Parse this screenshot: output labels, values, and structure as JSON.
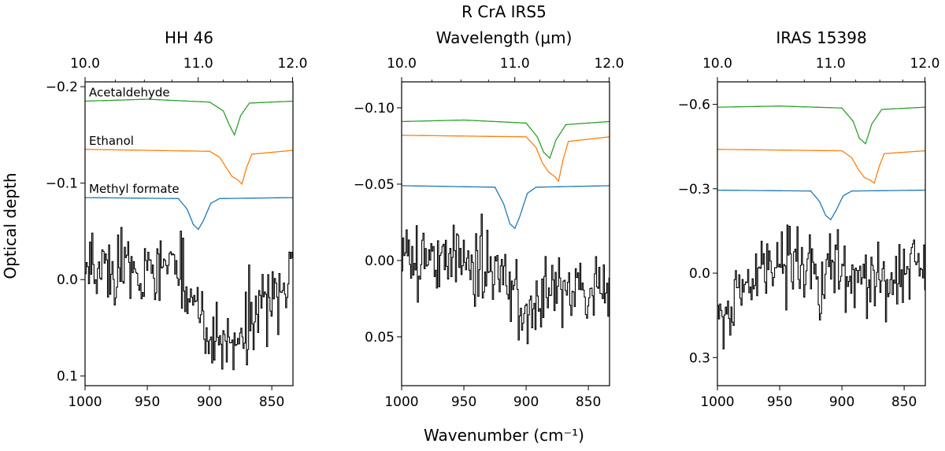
{
  "figure": {
    "suptitle": "R CrA IRS5",
    "top_axis_label": "Wavelength (μm)",
    "bottom_axis_label": "Wavenumber (cm⁻¹)",
    "ylabel": "Optical depth"
  },
  "chart_data": [
    {
      "type": "line",
      "title": "HH 46",
      "xlabel": "Wavenumber (cm⁻¹)",
      "ylabel": "Optical depth",
      "xlim": [
        1000,
        833
      ],
      "ylim": [
        0.11,
        -0.205
      ],
      "y_inverted": true,
      "xticks": [
        1000,
        950,
        900,
        850
      ],
      "xtick_labels": [
        "1000",
        "950",
        "900",
        "850"
      ],
      "yticks": [
        -0.2,
        -0.1,
        0.0,
        0.1
      ],
      "ytick_labels": [
        "−0.2",
        "−0.1",
        "0.0",
        "0.1"
      ],
      "top_ticks_um": [
        10.0,
        11.0,
        12.0
      ],
      "top_tick_labels": [
        "10.0",
        "11.0",
        "12.0"
      ],
      "top_minor_um": [
        10.25,
        10.5,
        10.75,
        11.25,
        11.5,
        11.75
      ],
      "observed_scale": 0.018,
      "observed_trend": [
        [
          1000,
          -0.01
        ],
        [
          950,
          -0.008
        ],
        [
          930,
          -0.015
        ],
        [
          900,
          0.06
        ],
        [
          880,
          0.065
        ],
        [
          860,
          0.035
        ],
        [
          833,
          -0.01
        ]
      ],
      "series": [
        {
          "name": "Acetaldehyde",
          "color": "#2ca02c",
          "baseline": -0.185,
          "profile": [
            [
              1000,
              0
            ],
            [
              950,
              -0.002
            ],
            [
              900,
              0.001
            ],
            [
              889,
              0.01
            ],
            [
              884,
              0.025
            ],
            [
              880,
              0.035
            ],
            [
              875,
              0.015
            ],
            [
              868,
              0.002
            ],
            [
              833,
              0
            ]
          ]
        },
        {
          "name": "Ethanol",
          "color": "#ff7f0e",
          "baseline": -0.135,
          "profile": [
            [
              1000,
              0
            ],
            [
              900,
              0.002
            ],
            [
              892,
              0.008
            ],
            [
              887,
              0.018
            ],
            [
              882,
              0.028
            ],
            [
              877,
              0.032
            ],
            [
              874,
              0.036
            ],
            [
              870,
              0.018
            ],
            [
              866,
              0.005
            ],
            [
              833,
              0.001
            ]
          ]
        },
        {
          "name": "Methyl formate",
          "color": "#1f77b4",
          "baseline": -0.085,
          "profile": [
            [
              1000,
              0
            ],
            [
              925,
              0.001
            ],
            [
              918,
              0.012
            ],
            [
              913,
              0.028
            ],
            [
              909,
              0.033
            ],
            [
              905,
              0.024
            ],
            [
              899,
              0.006
            ],
            [
              892,
              0.001
            ],
            [
              833,
              0
            ]
          ]
        }
      ]
    },
    {
      "type": "line",
      "title": "",
      "xlabel": "Wavenumber (cm⁻¹)",
      "ylabel": "",
      "xlim": [
        1000,
        833
      ],
      "ylim": [
        0.082,
        -0.117
      ],
      "y_inverted": true,
      "xticks": [
        1000,
        950,
        900,
        850
      ],
      "xtick_labels": [
        "1000",
        "950",
        "900",
        "850"
      ],
      "yticks": [
        -0.1,
        -0.05,
        0.0,
        0.05
      ],
      "ytick_labels": [
        "−0.10",
        "−0.05",
        "0.00",
        "0.05"
      ],
      "top_ticks_um": [
        10.0,
        11.0,
        12.0
      ],
      "top_tick_labels": [
        "10.0",
        "11.0",
        "12.0"
      ],
      "top_minor_um": [
        10.25,
        10.5,
        10.75,
        11.25,
        11.5,
        11.75
      ],
      "observed_scale": 0.012,
      "observed_trend": [
        [
          1000,
          -0.005
        ],
        [
          950,
          0.002
        ],
        [
          920,
          0.01
        ],
        [
          905,
          0.035
        ],
        [
          890,
          0.025
        ],
        [
          870,
          0.018
        ],
        [
          850,
          0.02
        ],
        [
          833,
          0.015
        ]
      ],
      "series": [
        {
          "name": "Acetaldehyde",
          "color": "#2ca02c",
          "baseline": -0.091,
          "profile": [
            [
              1000,
              0
            ],
            [
              950,
              -0.001
            ],
            [
              900,
              0.001
            ],
            [
              891,
              0.01
            ],
            [
              886,
              0.02
            ],
            [
              881,
              0.024
            ],
            [
              876,
              0.012
            ],
            [
              868,
              0.002
            ],
            [
              833,
              0
            ]
          ]
        },
        {
          "name": "Ethanol",
          "color": "#ff7f0e",
          "baseline": -0.082,
          "profile": [
            [
              1000,
              0
            ],
            [
              900,
              0.001
            ],
            [
              892,
              0.008
            ],
            [
              887,
              0.018
            ],
            [
              882,
              0.024
            ],
            [
              877,
              0.027
            ],
            [
              874,
              0.03
            ],
            [
              870,
              0.015
            ],
            [
              866,
              0.004
            ],
            [
              833,
              0.001
            ]
          ]
        },
        {
          "name": "Methyl formate",
          "color": "#1f77b4",
          "baseline": -0.049,
          "profile": [
            [
              1000,
              0
            ],
            [
              925,
              0.001
            ],
            [
              918,
              0.012
            ],
            [
              913,
              0.025
            ],
            [
              909,
              0.028
            ],
            [
              905,
              0.02
            ],
            [
              899,
              0.005
            ],
            [
              892,
              0.001
            ],
            [
              833,
              0
            ]
          ]
        }
      ]
    },
    {
      "type": "line",
      "title": "IRAS 15398",
      "xlabel": "Wavenumber (cm⁻¹)",
      "ylabel": "",
      "xlim": [
        1000,
        833
      ],
      "ylim": [
        0.4,
        -0.68
      ],
      "y_inverted": true,
      "xticks": [
        1000,
        950,
        900,
        850
      ],
      "xtick_labels": [
        "1000",
        "950",
        "900",
        "850"
      ],
      "yticks": [
        -0.6,
        -0.3,
        0.0,
        0.3
      ],
      "ytick_labels": [
        "−0.6",
        "−0.3",
        "0.0",
        "0.3"
      ],
      "top_ticks_um": [
        10.0,
        11.0,
        12.0
      ],
      "top_tick_labels": [
        "10.0",
        "11.0",
        "12.0"
      ],
      "top_minor_um": [
        10.25,
        10.5,
        10.75,
        11.25,
        11.5,
        11.75
      ],
      "observed_scale": 0.075,
      "observed_trend": [
        [
          1000,
          0.2
        ],
        [
          985,
          0.08
        ],
        [
          950,
          -0.02
        ],
        [
          920,
          -0.03
        ],
        [
          900,
          0.02
        ],
        [
          880,
          0.03
        ],
        [
          860,
          0.0
        ],
        [
          840,
          -0.06
        ],
        [
          833,
          -0.07
        ]
      ],
      "series": [
        {
          "name": "Acetaldehyde",
          "color": "#2ca02c",
          "baseline": -0.59,
          "profile": [
            [
              1000,
              0
            ],
            [
              950,
              -0.004
            ],
            [
              900,
              0.003
            ],
            [
              891,
              0.05
            ],
            [
              886,
              0.11
            ],
            [
              881,
              0.13
            ],
            [
              876,
              0.06
            ],
            [
              868,
              0.008
            ],
            [
              833,
              0
            ]
          ]
        },
        {
          "name": "Ethanol",
          "color": "#ff7f0e",
          "baseline": -0.44,
          "profile": [
            [
              1000,
              0
            ],
            [
              900,
              0.005
            ],
            [
              892,
              0.03
            ],
            [
              887,
              0.07
            ],
            [
              882,
              0.1
            ],
            [
              877,
              0.11
            ],
            [
              874,
              0.12
            ],
            [
              870,
              0.06
            ],
            [
              866,
              0.015
            ],
            [
              833,
              0.005
            ]
          ]
        },
        {
          "name": "Methyl formate",
          "color": "#1f77b4",
          "baseline": -0.295,
          "profile": [
            [
              1000,
              0
            ],
            [
              925,
              0.003
            ],
            [
              918,
              0.04
            ],
            [
              913,
              0.09
            ],
            [
              909,
              0.105
            ],
            [
              905,
              0.075
            ],
            [
              899,
              0.02
            ],
            [
              892,
              0.003
            ],
            [
              833,
              0
            ]
          ]
        }
      ]
    }
  ]
}
